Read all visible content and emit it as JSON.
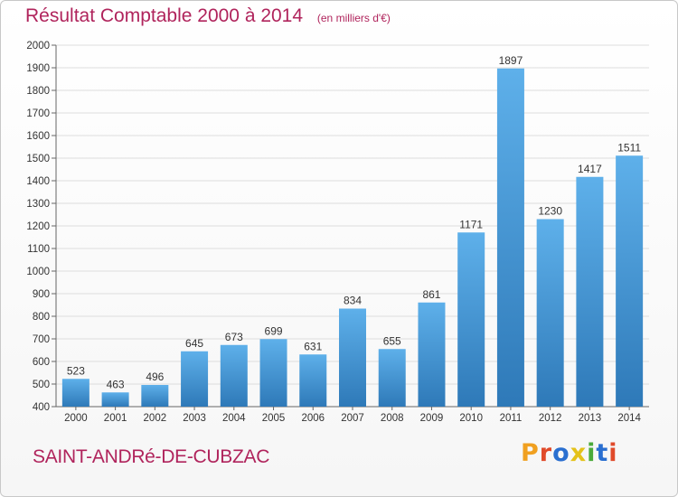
{
  "header": {
    "title": "Résultat Comptable 2000 à 2014",
    "unit_note": "(en milliers d'€)"
  },
  "footer": {
    "commune": "SAINT-ANDRé-DE-CUBZAC",
    "brand": "Proxiti"
  },
  "colors": {
    "title": "#b0245c",
    "bar_top": "#5eb0ea",
    "bar_bottom": "#2e79b8",
    "grid": "#dddddd",
    "brand_letters": [
      "#f0a020",
      "#e04a2a",
      "#2a6fd0",
      "#e4c21a",
      "#4aaa3a",
      "#2a6fd0",
      "#e04a2a"
    ]
  },
  "chart_data": {
    "type": "bar",
    "title": "Résultat Comptable 2000 à 2014",
    "subtitle": "(en milliers d'€)",
    "xlabel": "",
    "ylabel": "",
    "categories": [
      "2000",
      "2001",
      "2002",
      "2003",
      "2004",
      "2005",
      "2006",
      "2007",
      "2008",
      "2009",
      "2010",
      "2011",
      "2012",
      "2013",
      "2014"
    ],
    "values": [
      523,
      463,
      496,
      645,
      673,
      699,
      631,
      834,
      655,
      861,
      1171,
      1897,
      1230,
      1417,
      1511
    ],
    "ylim": [
      400,
      2000
    ],
    "yticks": [
      400,
      500,
      600,
      700,
      800,
      900,
      1000,
      1100,
      1200,
      1300,
      1400,
      1500,
      1600,
      1700,
      1800,
      1900,
      2000
    ],
    "grid": true,
    "legend": "none"
  }
}
